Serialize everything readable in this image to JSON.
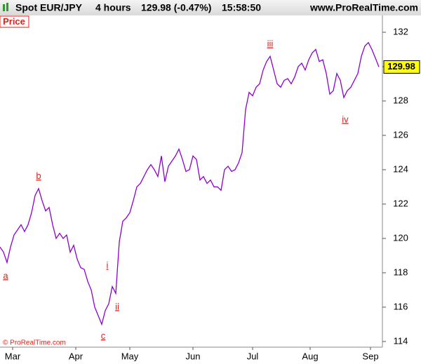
{
  "chart_data": {
    "type": "line",
    "header": {
      "symbol": "Spot EUR/JPY",
      "interval": "4 hours",
      "quote": "129.98 (-0.47%)",
      "time": "15:58:50",
      "site": "www.ProRealTime.com"
    },
    "panel_label": "Price",
    "copyright": "© ProRealTime.com",
    "color": "#8f00d0",
    "values": [
      119.5,
      119.2,
      118.6,
      119.5,
      120.2,
      120.5,
      120.8,
      120.4,
      120.8,
      121.5,
      122.5,
      122.9,
      122.2,
      121.6,
      121.8,
      120.8,
      120.0,
      120.3,
      120.0,
      120.2,
      119.2,
      119.6,
      118.8,
      118.3,
      118.2,
      117.5,
      117.0,
      116.0,
      115.5,
      115.0,
      115.8,
      116.2,
      117.2,
      116.8,
      119.8,
      121.0,
      121.2,
      121.5,
      122.2,
      123.0,
      123.2,
      123.6,
      124.0,
      124.3,
      124.0,
      123.6,
      124.8,
      123.3,
      124.2,
      124.5,
      124.8,
      125.2,
      124.6,
      123.9,
      124.0,
      124.8,
      124.6,
      123.4,
      123.6,
      123.2,
      123.4,
      123.0,
      123.0,
      122.8,
      124.0,
      124.2,
      123.9,
      124.0,
      124.4,
      125.0,
      127.5,
      128.5,
      128.3,
      128.8,
      129.0,
      129.8,
      130.3,
      130.6,
      129.8,
      129.0,
      128.8,
      129.2,
      129.3,
      129.0,
      129.4,
      130.0,
      130.2,
      129.8,
      130.4,
      130.8,
      131.0,
      130.3,
      130.4,
      129.6,
      128.4,
      128.6,
      129.6,
      129.2,
      128.2,
      128.6,
      128.8,
      129.2,
      129.6,
      130.6,
      131.2,
      131.4,
      131.0,
      130.5,
      129.98
    ],
    "xlim": [
      0,
      109
    ],
    "xticks": [
      {
        "value": 3.6,
        "label": "Mar"
      },
      {
        "value": 21.6,
        "label": "Apr"
      },
      {
        "value": 37,
        "label": "May"
      },
      {
        "value": 55,
        "label": "Jun"
      },
      {
        "value": 72,
        "label": "Jul"
      },
      {
        "value": 88.4,
        "label": "Aug"
      },
      {
        "value": 105.6,
        "label": "Sep"
      }
    ],
    "ylim": [
      113.67,
      132.98
    ],
    "yticks": [
      114,
      116,
      118,
      120,
      122,
      124,
      126,
      128,
      130,
      132
    ],
    "annotations": [
      {
        "text": "a",
        "x": 1.6,
        "y": 117.8
      },
      {
        "text": "b",
        "x": 11,
        "y": 123.6
      },
      {
        "text": "c",
        "x": 29.4,
        "y": 114.3
      },
      {
        "text": "i",
        "x": 30.6,
        "y": 118.4
      },
      {
        "text": "ii",
        "x": 33.4,
        "y": 116.0
      },
      {
        "text": "iii",
        "x": 77,
        "y": 131.3
      },
      {
        "text": "iv",
        "x": 98.4,
        "y": 126.9
      }
    ]
  }
}
